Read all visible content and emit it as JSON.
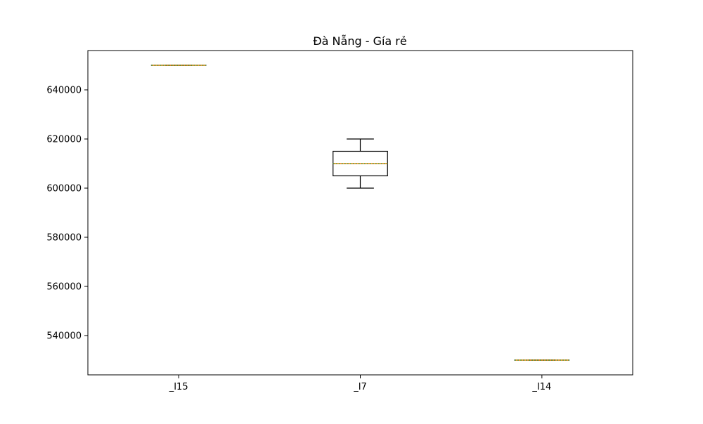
{
  "chart_data": {
    "type": "box",
    "title": "Đà Nẵng - Gía rẻ",
    "xlabel": "",
    "ylabel": "",
    "categories": [
      "_I15",
      "_I7",
      "_I14"
    ],
    "boxes": [
      {
        "category": "_I15",
        "whislo": 650000,
        "q1": 650000,
        "med": 650000,
        "q3": 650000,
        "whishi": 650000
      },
      {
        "category": "_I7",
        "whislo": 600000,
        "q1": 605000,
        "med": 610000,
        "q3": 615000,
        "whishi": 620000
      },
      {
        "category": "_I14",
        "whislo": 530000,
        "q1": 530000,
        "med": 530000,
        "q3": 530000,
        "whishi": 530000
      }
    ],
    "ylim": [
      524000,
      656000
    ],
    "yticks": [
      540000,
      560000,
      580000,
      600000,
      620000,
      640000
    ],
    "grid": false,
    "colors": {
      "box": "#000000",
      "median_outer": "#ff7f0e",
      "median_inner": "#2ca02c"
    }
  }
}
